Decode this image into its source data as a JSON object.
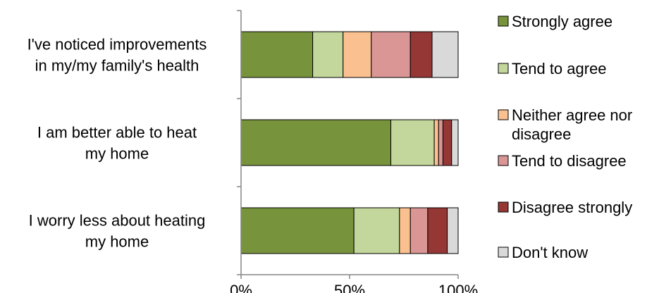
{
  "chart_data": {
    "type": "bar",
    "orientation": "horizontal",
    "stacked": true,
    "percent_stacked": true,
    "categories": [
      [
        "I've noticed improvements",
        "in my/my family's health"
      ],
      [
        "I am better able to heat",
        "my home"
      ],
      [
        "I worry less about heating",
        "my home"
      ]
    ],
    "series": [
      {
        "name": "Strongly agree",
        "color": "#77933c",
        "values": [
          33,
          69,
          52
        ]
      },
      {
        "name": "Tend to agree",
        "color": "#c3d69b",
        "values": [
          14,
          20,
          21
        ]
      },
      {
        "name": [
          "Neither agree nor",
          "disagree"
        ],
        "color": "#fac090",
        "values": [
          13,
          2,
          5
        ]
      },
      {
        "name": "Tend to disagree",
        "color": "#d99694",
        "values": [
          18,
          2,
          8
        ]
      },
      {
        "name": "Disagree strongly",
        "color": "#953735",
        "values": [
          10,
          4,
          9
        ]
      },
      {
        "name": "Don't know",
        "color": "#d9d9d9",
        "values": [
          12,
          3,
          5
        ]
      }
    ],
    "x_ticks": [
      "0%",
      "50%",
      "100%"
    ],
    "xlim": [
      0,
      100
    ],
    "grid": false,
    "legend_position": "right",
    "title": "",
    "xlabel": "",
    "ylabel": ""
  }
}
